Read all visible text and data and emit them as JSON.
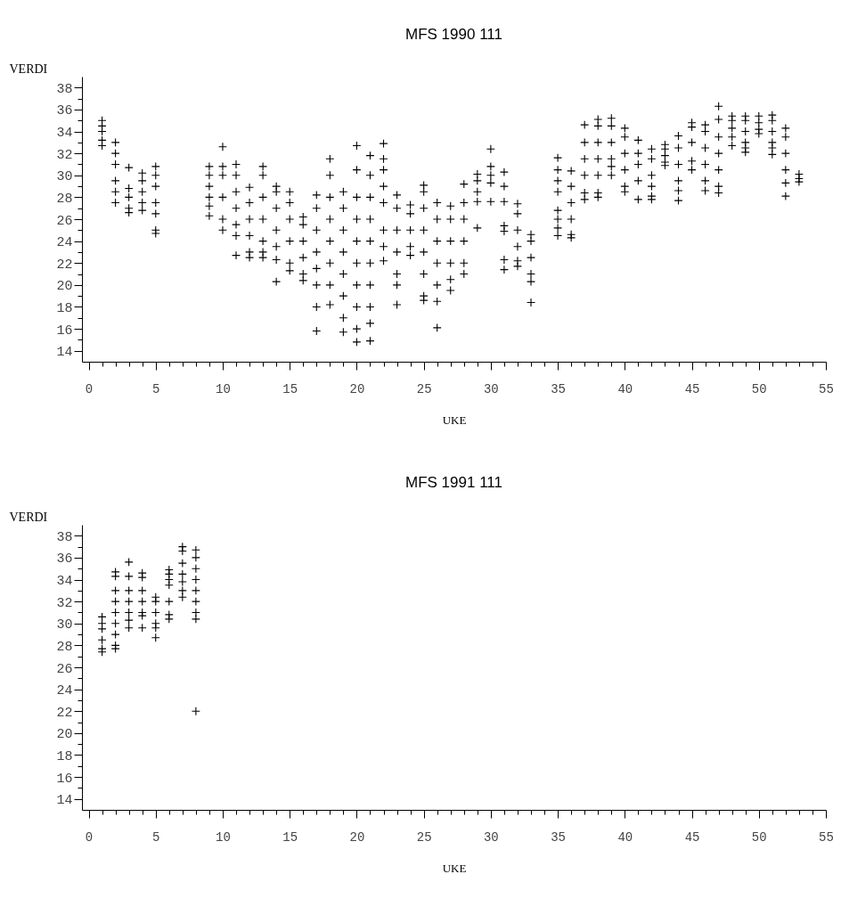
{
  "chart_data": [
    {
      "type": "scatter",
      "title": "MFS 1990 111",
      "xlabel": "UKE",
      "ylabel": "VERDI",
      "marker": "cross",
      "grid": false,
      "xlim": [
        -0.5,
        55
      ],
      "ylim": [
        13,
        39
      ],
      "xticks": [
        0,
        {
          "value": 1,
          "label": null
        },
        {
          "value": 2,
          "label": null
        },
        {
          "value": 3,
          "label": null
        },
        {
          "value": 4,
          "label": null
        },
        5,
        {
          "value": 6,
          "label": null
        },
        {
          "value": 7,
          "label": null
        },
        {
          "value": 8,
          "label": null
        },
        {
          "value": 9,
          "label": null
        },
        10,
        {
          "value": 11,
          "label": null
        },
        {
          "value": 12,
          "label": null
        },
        {
          "value": 13,
          "label": null
        },
        {
          "value": 14,
          "label": null
        },
        15,
        {
          "value": 16,
          "label": null
        },
        {
          "value": 17,
          "label": null
        },
        {
          "value": 18,
          "label": null
        },
        {
          "value": 19,
          "label": null
        },
        20,
        {
          "value": 21,
          "label": null
        },
        {
          "value": 22,
          "label": null
        },
        {
          "value": 23,
          "label": null
        },
        {
          "value": 24,
          "label": null
        },
        25,
        {
          "value": 26,
          "label": null
        },
        {
          "value": 27,
          "label": null
        },
        {
          "value": 28,
          "label": null
        },
        {
          "value": 29,
          "label": null
        },
        30,
        {
          "value": 31,
          "label": null
        },
        {
          "value": 32,
          "label": null
        },
        {
          "value": 33,
          "label": null
        },
        {
          "value": 34,
          "label": null
        },
        35,
        {
          "value": 36,
          "label": null
        },
        {
          "value": 37,
          "label": null
        },
        {
          "value": 38,
          "label": null
        },
        {
          "value": 39,
          "label": null
        },
        40,
        {
          "value": 41,
          "label": null
        },
        {
          "value": 42,
          "label": null
        },
        {
          "value": 43,
          "label": null
        },
        {
          "value": 44,
          "label": null
        },
        45,
        {
          "value": 46,
          "label": null
        },
        {
          "value": 47,
          "label": null
        },
        {
          "value": 48,
          "label": null
        },
        {
          "value": 49,
          "label": null
        },
        50,
        {
          "value": 51,
          "label": null
        },
        {
          "value": 52,
          "label": null
        },
        {
          "value": 53,
          "label": null
        },
        {
          "value": 54,
          "label": null
        },
        55
      ],
      "yticks": [
        14,
        {
          "value": 15,
          "label": null
        },
        16,
        {
          "value": 17,
          "label": null
        },
        18,
        {
          "value": 19,
          "label": null
        },
        20,
        {
          "value": 21,
          "label": null
        },
        22,
        {
          "value": 23,
          "label": null
        },
        24,
        {
          "value": 25,
          "label": null
        },
        26,
        {
          "value": 27,
          "label": null
        },
        28,
        {
          "value": 29,
          "label": null
        },
        30,
        {
          "value": 31,
          "label": null
        },
        32,
        {
          "value": 33,
          "label": null
        },
        34,
        {
          "value": 35,
          "label": null
        },
        36,
        {
          "value": 37,
          "label": null
        },
        38
      ],
      "series": [
        {
          "color": "#000000",
          "x": [
            1,
            1,
            1,
            1,
            1,
            2,
            2,
            2,
            2,
            2,
            2,
            3,
            3,
            3,
            3,
            3,
            4,
            4,
            4,
            4,
            4,
            5,
            5,
            5,
            5,
            5,
            5,
            5,
            9,
            9,
            9,
            9,
            9,
            9,
            10,
            10,
            10,
            10,
            10,
            10,
            11,
            11,
            11,
            11,
            11,
            11,
            11,
            12,
            12,
            12,
            12,
            12,
            12,
            13,
            13,
            13,
            13,
            13,
            13,
            13,
            14,
            14,
            14,
            14,
            14,
            14,
            14,
            15,
            15,
            15,
            15,
            15,
            15,
            16,
            16,
            16,
            16,
            16,
            16,
            17,
            17,
            17,
            17,
            17,
            17,
            17,
            17,
            18,
            18,
            18,
            18,
            18,
            18,
            18,
            18,
            19,
            19,
            19,
            19,
            19,
            19,
            19,
            19,
            20,
            20,
            20,
            20,
            20,
            20,
            20,
            20,
            20,
            20,
            21,
            21,
            21,
            21,
            21,
            21,
            21,
            21,
            21,
            21,
            22,
            22,
            22,
            22,
            22,
            22,
            22,
            22,
            23,
            23,
            23,
            23,
            23,
            23,
            23,
            24,
            24,
            24,
            24,
            24,
            25,
            25,
            25,
            25,
            25,
            25,
            25,
            25,
            26,
            26,
            26,
            26,
            26,
            26,
            26,
            27,
            27,
            27,
            27,
            27,
            27,
            28,
            28,
            28,
            28,
            28,
            28,
            29,
            29,
            29,
            29,
            29,
            30,
            30,
            30,
            30,
            30,
            31,
            31,
            31,
            31,
            31,
            31,
            31,
            32,
            32,
            32,
            32,
            32,
            32,
            33,
            33,
            33,
            33,
            33,
            33,
            35,
            35,
            35,
            35,
            35,
            35,
            35,
            35,
            36,
            36,
            36,
            36,
            36,
            36,
            37,
            37,
            37,
            37,
            37,
            37,
            38,
            38,
            38,
            38,
            38,
            38,
            38,
            39,
            39,
            39,
            39,
            39,
            39,
            40,
            40,
            40,
            40,
            40,
            40,
            41,
            41,
            41,
            41,
            41,
            42,
            42,
            42,
            42,
            42,
            42,
            43,
            43,
            43,
            43,
            43,
            44,
            44,
            44,
            44,
            44,
            44,
            45,
            45,
            45,
            45,
            45,
            46,
            46,
            46,
            46,
            46,
            46,
            47,
            47,
            47,
            47,
            47,
            47,
            47,
            48,
            48,
            48,
            48,
            48,
            49,
            49,
            49,
            49,
            49,
            49,
            50,
            50,
            50,
            50,
            51,
            51,
            51,
            51,
            51,
            51,
            52,
            52,
            52,
            52,
            52,
            52,
            53,
            53,
            53
          ],
          "values": [
            35.0,
            34.5,
            34.0,
            33.2,
            32.7,
            33.0,
            32,
            31,
            29.5,
            28.5,
            27.5,
            30.7,
            28.8,
            28,
            27,
            26.6,
            30.2,
            29.5,
            28.5,
            27.5,
            26.8,
            30.8,
            30,
            29,
            27.5,
            26.5,
            25,
            24.7,
            30.8,
            30,
            29,
            28,
            27.2,
            26.3,
            32.6,
            30.8,
            30,
            28,
            26,
            25,
            31,
            30,
            28.5,
            27,
            25.5,
            24.5,
            22.7,
            28.9,
            27.5,
            26,
            24.5,
            23,
            22.5,
            30.8,
            30,
            28,
            26,
            24,
            23,
            22.5,
            29,
            28.5,
            27,
            25,
            23.5,
            22.3,
            20.3,
            28.5,
            27.5,
            26,
            24,
            22,
            21.3,
            26.2,
            25.5,
            24,
            22.5,
            21,
            20.4,
            28.2,
            27,
            25,
            23,
            21.5,
            20,
            18,
            15.8,
            31.5,
            30,
            28,
            26,
            24,
            22,
            20,
            18.2,
            28.5,
            27,
            25,
            23,
            21,
            19,
            17,
            15.7,
            32.7,
            30.5,
            28,
            26,
            24,
            22,
            20,
            18,
            16,
            14.8,
            31.8,
            30,
            28,
            26,
            24,
            22,
            20,
            18,
            16.5,
            14.9,
            32.9,
            31.5,
            30.5,
            29,
            27.5,
            25,
            23.5,
            22.2,
            28.2,
            27,
            25,
            23,
            21,
            20,
            18.2,
            27.3,
            26.5,
            25,
            23.5,
            22.7,
            29.1,
            28.5,
            27,
            25,
            23,
            21,
            19,
            18.6,
            27.5,
            26,
            24,
            22,
            20,
            18.5,
            16.1,
            27.2,
            26,
            24,
            22,
            20.5,
            19.5,
            29.2,
            27.5,
            26,
            24,
            22,
            21,
            30.1,
            29.5,
            28.5,
            27.6,
            25.2,
            32.4,
            30.8,
            30,
            29.3,
            27.6,
            30.3,
            29,
            27.6,
            25.4,
            24.9,
            22.3,
            21.4,
            27.4,
            26.5,
            25,
            23.5,
            22.2,
            21.7,
            24.6,
            24,
            22.5,
            21,
            20.3,
            18.4,
            31.6,
            30.5,
            29.5,
            28.5,
            26.8,
            26,
            25.2,
            24.5,
            30.4,
            29,
            27.5,
            26,
            24.6,
            24.3,
            34.6,
            33,
            31.5,
            30,
            28.4,
            27.8,
            35.1,
            34.5,
            33,
            31.5,
            30,
            28.4,
            28,
            35.2,
            34.5,
            33,
            31.5,
            30.8,
            30,
            34.3,
            33.5,
            32,
            30.5,
            29,
            28.5,
            33.2,
            32,
            31,
            29.5,
            27.8,
            32.4,
            31.5,
            30,
            29,
            28.1,
            27.8,
            32.8,
            32.4,
            31.8,
            31.2,
            30.9,
            33.6,
            32.5,
            31,
            29.5,
            28.6,
            27.7,
            34.8,
            34.4,
            33,
            31.3,
            30.5,
            34.6,
            34,
            32.5,
            31,
            29.5,
            28.6,
            36.3,
            35.1,
            33.5,
            32,
            30.5,
            29,
            28.4,
            35.4,
            35,
            34.3,
            33.5,
            32.7,
            35.4,
            35,
            34,
            33,
            32.5,
            32.1,
            35.4,
            34.8,
            34.2,
            33.8,
            35.5,
            35,
            34,
            33,
            32.5,
            31.9,
            34.3,
            33.5,
            32,
            30.5,
            29.3,
            28.1,
            30.1,
            29.7,
            29.4
          ]
        }
      ]
    },
    {
      "type": "scatter",
      "title": "MFS 1991 111",
      "xlabel": "UKE",
      "ylabel": "VERDI",
      "marker": "cross",
      "grid": false,
      "xlim": [
        -0.5,
        55
      ],
      "ylim": [
        13,
        39
      ],
      "xticks": [
        0,
        {
          "value": 1,
          "label": null
        },
        {
          "value": 2,
          "label": null
        },
        {
          "value": 3,
          "label": null
        },
        {
          "value": 4,
          "label": null
        },
        5,
        {
          "value": 6,
          "label": null
        },
        {
          "value": 7,
          "label": null
        },
        {
          "value": 8,
          "label": null
        },
        {
          "value": 9,
          "label": null
        },
        10,
        {
          "value": 11,
          "label": null
        },
        {
          "value": 12,
          "label": null
        },
        {
          "value": 13,
          "label": null
        },
        {
          "value": 14,
          "label": null
        },
        15,
        {
          "value": 16,
          "label": null
        },
        {
          "value": 17,
          "label": null
        },
        {
          "value": 18,
          "label": null
        },
        {
          "value": 19,
          "label": null
        },
        20,
        {
          "value": 21,
          "label": null
        },
        {
          "value": 22,
          "label": null
        },
        {
          "value": 23,
          "label": null
        },
        {
          "value": 24,
          "label": null
        },
        25,
        {
          "value": 26,
          "label": null
        },
        {
          "value": 27,
          "label": null
        },
        {
          "value": 28,
          "label": null
        },
        {
          "value": 29,
          "label": null
        },
        30,
        {
          "value": 31,
          "label": null
        },
        {
          "value": 32,
          "label": null
        },
        {
          "value": 33,
          "label": null
        },
        {
          "value": 34,
          "label": null
        },
        35,
        {
          "value": 36,
          "label": null
        },
        {
          "value": 37,
          "label": null
        },
        {
          "value": 38,
          "label": null
        },
        {
          "value": 39,
          "label": null
        },
        40,
        {
          "value": 41,
          "label": null
        },
        {
          "value": 42,
          "label": null
        },
        {
          "value": 43,
          "label": null
        },
        {
          "value": 44,
          "label": null
        },
        45,
        {
          "value": 46,
          "label": null
        },
        {
          "value": 47,
          "label": null
        },
        {
          "value": 48,
          "label": null
        },
        {
          "value": 49,
          "label": null
        },
        50,
        {
          "value": 51,
          "label": null
        },
        {
          "value": 52,
          "label": null
        },
        {
          "value": 53,
          "label": null
        },
        {
          "value": 54,
          "label": null
        },
        55
      ],
      "yticks": [
        14,
        {
          "value": 15,
          "label": null
        },
        16,
        {
          "value": 17,
          "label": null
        },
        18,
        {
          "value": 19,
          "label": null
        },
        20,
        {
          "value": 21,
          "label": null
        },
        22,
        {
          "value": 23,
          "label": null
        },
        24,
        {
          "value": 25,
          "label": null
        },
        26,
        {
          "value": 27,
          "label": null
        },
        28,
        {
          "value": 29,
          "label": null
        },
        30,
        {
          "value": 31,
          "label": null
        },
        32,
        {
          "value": 33,
          "label": null
        },
        34,
        {
          "value": 35,
          "label": null
        },
        36,
        {
          "value": 37,
          "label": null
        },
        38
      ],
      "series": [
        {
          "color": "#000000",
          "x": [
            1,
            1,
            1,
            1,
            1,
            1,
            2,
            2,
            2,
            2,
            2,
            2,
            2,
            2,
            2,
            3,
            3,
            3,
            3,
            3,
            3,
            3,
            4,
            4,
            4,
            4,
            4,
            4,
            4,
            5,
            5,
            5,
            5,
            5,
            5,
            6,
            6,
            6,
            6,
            6,
            6,
            6,
            7,
            7,
            7,
            7,
            7,
            7,
            7,
            8,
            8,
            8,
            8,
            8,
            8,
            8,
            8,
            8
          ],
          "values": [
            30.6,
            30,
            29.5,
            28.5,
            27.7,
            27.4,
            34.7,
            34.3,
            33,
            32,
            31,
            30,
            29,
            28,
            27.7,
            35.6,
            34.3,
            33,
            32,
            31,
            30.3,
            29.6,
            34.6,
            34.2,
            33,
            32,
            31,
            30.7,
            29.6,
            32.4,
            32,
            31,
            30,
            29.6,
            28.7,
            34.9,
            34.5,
            34,
            33.5,
            32,
            30.8,
            30.4,
            37,
            36.6,
            35.5,
            34.5,
            33.8,
            33,
            32.4,
            36.7,
            36,
            35,
            34,
            33,
            32,
            31,
            30.4,
            22
          ]
        }
      ]
    }
  ]
}
